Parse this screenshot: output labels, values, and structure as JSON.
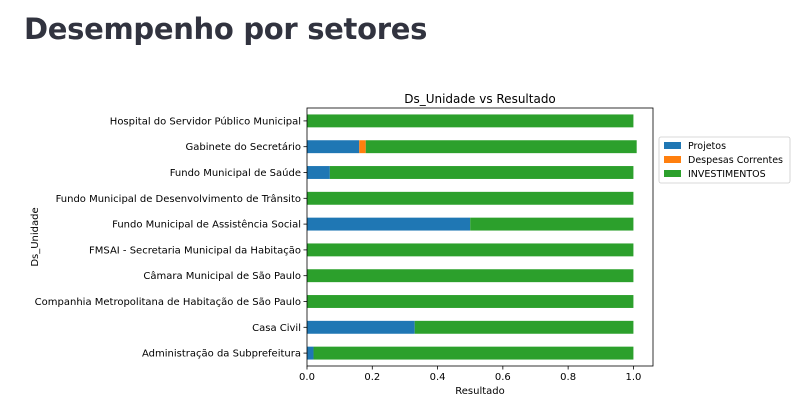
{
  "page": {
    "title": "Desempenho por setores"
  },
  "chart_data": {
    "type": "bar",
    "orientation": "horizontal",
    "stacked": true,
    "title": "Ds_Unidade vs Resultado",
    "xlabel": "Resultado",
    "ylabel": "Ds_Unidade",
    "xlim": [
      0,
      1.06
    ],
    "xticks": [
      0.0,
      0.2,
      0.4,
      0.6,
      0.8,
      1.0
    ],
    "xtick_labels": [
      "0.0",
      "0.2",
      "0.4",
      "0.6",
      "0.8",
      "1.0"
    ],
    "grid": false,
    "legend_position": "right",
    "categories": [
      "Administração da Subprefeitura",
      "Casa Civil",
      "Companhia Metropolitana de Habitação de São Paulo",
      "Câmara Municipal de São Paulo",
      "FMSAI - Secretaria Municipal da Habitação",
      "Fundo Municipal de Assistência Social",
      "Fundo Municipal de Desenvolvimento de Trânsito",
      "Fundo Municipal de Saúde",
      "Gabinete do Secretário",
      "Hospital do Servidor Público Municipal"
    ],
    "series": [
      {
        "name": "Projetos",
        "color": "#1f77b4",
        "values": [
          0.02,
          0.33,
          0,
          0,
          0,
          0.5,
          0,
          0.07,
          0.16,
          0
        ]
      },
      {
        "name": "Despesas Correntes",
        "color": "#ff7f0e",
        "values": [
          0,
          0,
          0,
          0,
          0,
          0,
          0,
          0,
          0.02,
          0
        ]
      },
      {
        "name": "INVESTIMENTOS",
        "color": "#2ca02c",
        "values": [
          0.98,
          0.67,
          1.0,
          1.0,
          1.0,
          0.5,
          1.0,
          0.93,
          0.83,
          1.0
        ]
      }
    ]
  }
}
